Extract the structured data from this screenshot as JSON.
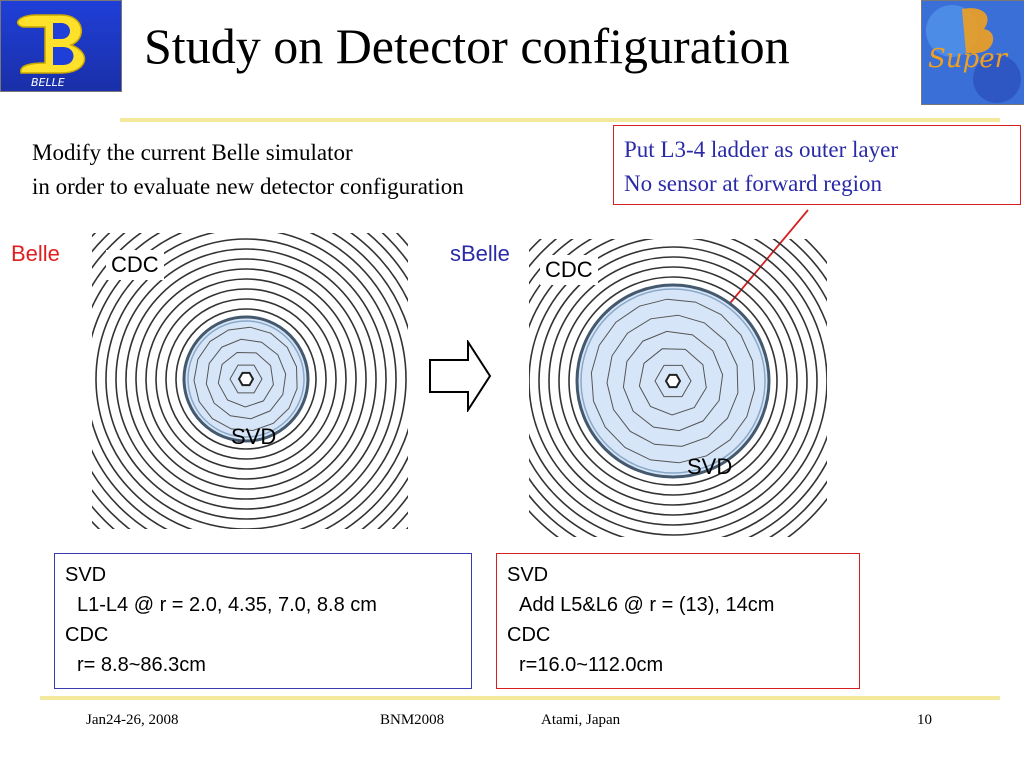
{
  "title": "Study on Detector configuration",
  "intro": {
    "line1": "Modify the current Belle simulator",
    "line2": "in order to evaluate new detector configuration"
  },
  "callout": {
    "line1": "Put L3-4 ladder as outer layer",
    "line2": "No sensor at forward region"
  },
  "left_panel": {
    "label": "Belle",
    "cdc": "CDC",
    "svd": "SVD"
  },
  "right_panel": {
    "label": "sBelle",
    "cdc": "CDC",
    "svd": "SVD"
  },
  "belle_box": {
    "h1": "SVD",
    "l1": "L1-L4 @ r = 2.0, 4.35, 7.0, 8.8 cm",
    "h2": "CDC",
    "l2": "r= 8.8~86.3cm"
  },
  "sbelle_box": {
    "h1": "SVD",
    "l1": "Add L5&L6 @ r = (13), 14cm",
    "h2": "CDC",
    "l2": "r=16.0~112.0cm"
  },
  "footer": {
    "date": "Jan24-26, 2008",
    "conf": "BNM2008",
    "place": "Atami, Japan",
    "page": "10"
  },
  "logos": {
    "belle_text": "BELLE",
    "super_text": "Super"
  },
  "colors": {
    "belle_label": "#e02020",
    "sbelle_label": "#2a2aa8",
    "rule": "#f4e89c",
    "callout_border": "#d62020",
    "callout_text": "#2a2aa8",
    "blue_box": "#3a3ab0"
  }
}
